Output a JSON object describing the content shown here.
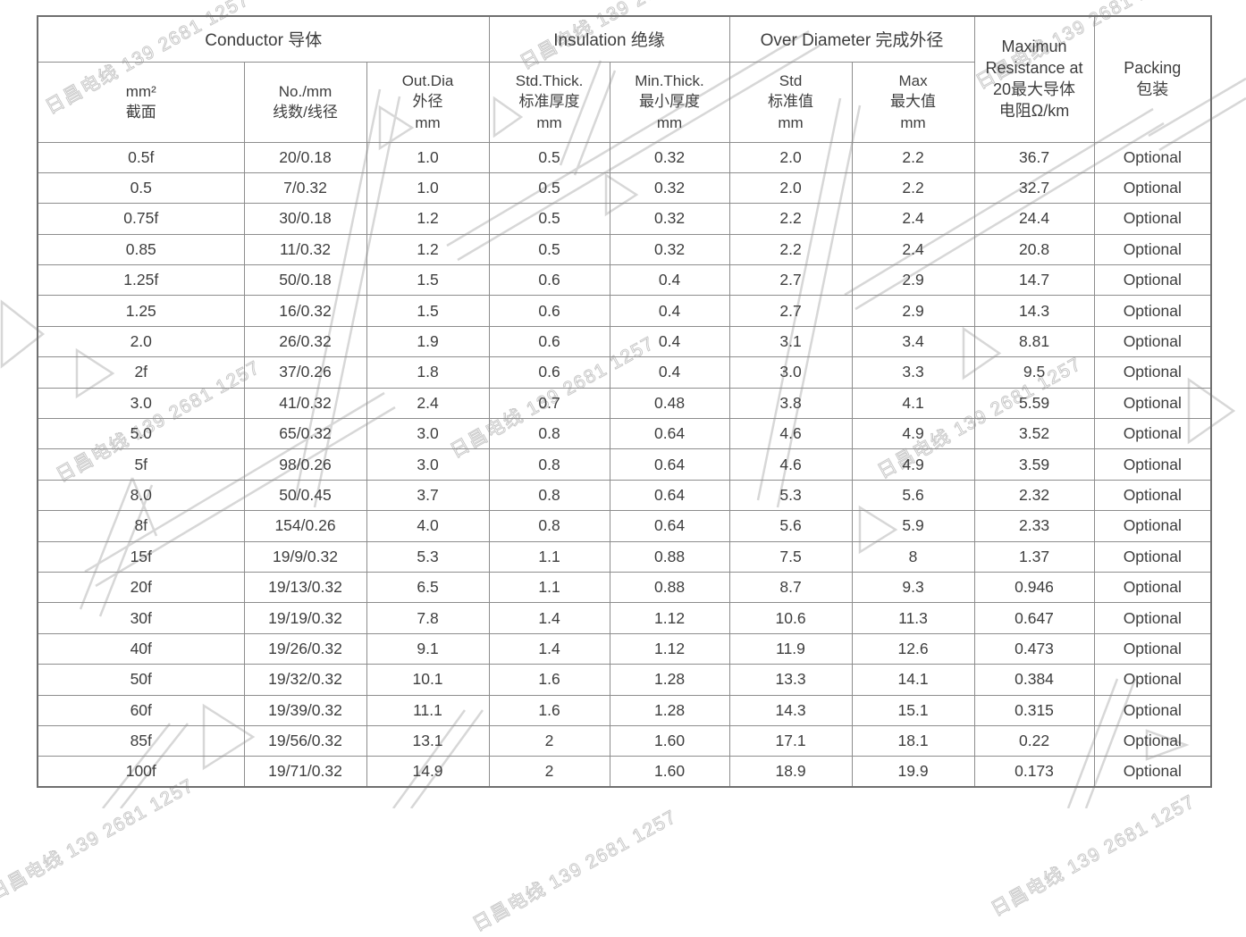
{
  "header": {
    "groups": [
      {
        "label": "Conductor 导体",
        "colspan": 3
      },
      {
        "label": "Insulation 绝缘",
        "colspan": 2
      },
      {
        "label": "Over Diameter 完成外径",
        "colspan": 2
      }
    ],
    "rowspan_cols": [
      {
        "label": "Maximun\nResistance at\n20最大导体\n电阻Ω/km"
      },
      {
        "label": "Packing\n包装"
      }
    ],
    "sub": [
      {
        "label": "mm²\n截面"
      },
      {
        "label": "No./mm\n线数/线径"
      },
      {
        "label": "Out.Dia\n外径\nmm"
      },
      {
        "label": "Std.Thick.\n标准厚度\nmm"
      },
      {
        "label": "Min.Thick.\n最小厚度\nmm"
      },
      {
        "label": "Std\n标准值\nmm"
      },
      {
        "label": "Max\n最大值\nmm"
      }
    ]
  },
  "rows": [
    [
      "0.5f",
      "20/0.18",
      "1.0",
      "0.5",
      "0.32",
      "2.0",
      "2.2",
      "36.7",
      "Optional"
    ],
    [
      "0.5",
      "7/0.32",
      "1.0",
      "0.5",
      "0.32",
      "2.0",
      "2.2",
      "32.7",
      "Optional"
    ],
    [
      "0.75f",
      "30/0.18",
      "1.2",
      "0.5",
      "0.32",
      "2.2",
      "2.4",
      "24.4",
      "Optional"
    ],
    [
      "0.85",
      "11/0.32",
      "1.2",
      "0.5",
      "0.32",
      "2.2",
      "2.4",
      "20.8",
      "Optional"
    ],
    [
      "1.25f",
      "50/0.18",
      "1.5",
      "0.6",
      "0.4",
      "2.7",
      "2.9",
      "14.7",
      "Optional"
    ],
    [
      "1.25",
      "16/0.32",
      "1.5",
      "0.6",
      "0.4",
      "2.7",
      "2.9",
      "14.3",
      "Optional"
    ],
    [
      "2.0",
      "26/0.32",
      "1.9",
      "0.6",
      "0.4",
      "3.1",
      "3.4",
      "8.81",
      "Optional"
    ],
    [
      "2f",
      "37/0.26",
      "1.8",
      "0.6",
      "0.4",
      "3.0",
      "3.3",
      "9.5",
      "Optional"
    ],
    [
      "3.0",
      "41/0.32",
      "2.4",
      "0.7",
      "0.48",
      "3.8",
      "4.1",
      "5.59",
      "Optional"
    ],
    [
      "5.0",
      "65/0.32",
      "3.0",
      "0.8",
      "0.64",
      "4.6",
      "4.9",
      "3.52",
      "Optional"
    ],
    [
      "5f",
      "98/0.26",
      "3.0",
      "0.8",
      "0.64",
      "4.6",
      "4.9",
      "3.59",
      "Optional"
    ],
    [
      "8.0",
      "50/0.45",
      "3.7",
      "0.8",
      "0.64",
      "5.3",
      "5.6",
      "2.32",
      "Optional"
    ],
    [
      "8f",
      "154/0.26",
      "4.0",
      "0.8",
      "0.64",
      "5.6",
      "5.9",
      "2.33",
      "Optional"
    ],
    [
      "15f",
      "19/9/0.32",
      "5.3",
      "1.1",
      "0.88",
      "7.5",
      "8",
      "1.37",
      "Optional"
    ],
    [
      "20f",
      "19/13/0.32",
      "6.5",
      "1.1",
      "0.88",
      "8.7",
      "9.3",
      "0.946",
      "Optional"
    ],
    [
      "30f",
      "19/19/0.32",
      "7.8",
      "1.4",
      "1.12",
      "10.6",
      "11.3",
      "0.647",
      "Optional"
    ],
    [
      "40f",
      "19/26/0.32",
      "9.1",
      "1.4",
      "1.12",
      "11.9",
      "12.6",
      "0.473",
      "Optional"
    ],
    [
      "50f",
      "19/32/0.32",
      "10.1",
      "1.6",
      "1.28",
      "13.3",
      "14.1",
      "0.384",
      "Optional"
    ],
    [
      "60f",
      "19/39/0.32",
      "11.1",
      "1.6",
      "1.28",
      "14.3",
      "15.1",
      "0.315",
      "Optional"
    ],
    [
      "85f",
      "19/56/0.32",
      "13.1",
      "2",
      "1.60",
      "17.1",
      "18.1",
      "0.22",
      "Optional"
    ],
    [
      "100f",
      "19/71/0.32",
      "14.9",
      "2",
      "1.60",
      "18.9",
      "19.9",
      "0.173",
      "Optional"
    ]
  ],
  "watermark": {
    "text": "日昌电线 139 2681 1257"
  }
}
